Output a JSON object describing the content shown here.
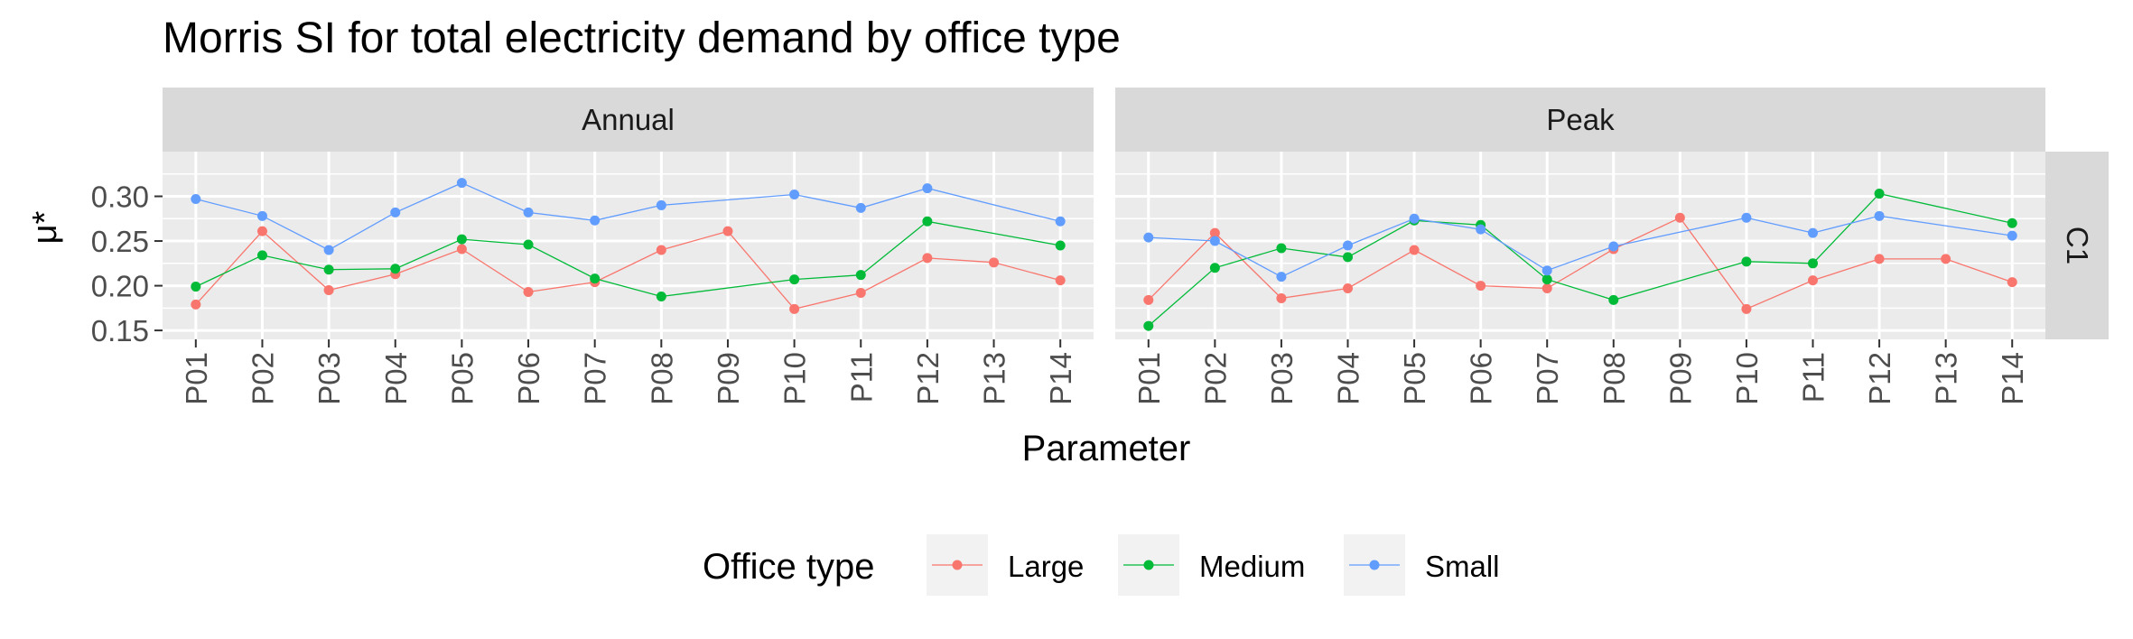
{
  "chart_data": {
    "type": "line",
    "title": "Morris SI for total electricity demand by office type",
    "xlabel": "Parameter",
    "ylabel": "μ*",
    "ylim": [
      0.14,
      0.35
    ],
    "yticks": [
      0.15,
      0.2,
      0.25,
      0.3
    ],
    "ytick_labels": [
      "0.15",
      "0.20",
      "0.25",
      "0.30"
    ],
    "categories": [
      "P01",
      "P02",
      "P03",
      "P04",
      "P05",
      "P06",
      "P07",
      "P08",
      "P09",
      "P10",
      "P11",
      "P12",
      "P13",
      "P14"
    ],
    "grid": true,
    "legend": {
      "title": "Office type",
      "position": "bottom"
    },
    "row_strip": "C1",
    "facets": [
      {
        "label": "Annual",
        "series": [
          {
            "name": "Large",
            "color": "#F8766D",
            "values": [
              0.179,
              0.261,
              0.195,
              0.213,
              0.241,
              0.193,
              0.204,
              0.24,
              0.261,
              0.174,
              0.192,
              0.231,
              0.226,
              0.206
            ]
          },
          {
            "name": "Medium",
            "color": "#00BA38",
            "values": [
              0.199,
              0.234,
              0.218,
              0.219,
              0.252,
              0.246,
              0.208,
              0.188,
              null,
              0.207,
              0.212,
              0.272,
              null,
              0.245
            ]
          },
          {
            "name": "Small",
            "color": "#619CFF",
            "values": [
              0.297,
              0.278,
              0.24,
              0.282,
              0.315,
              0.282,
              0.273,
              0.29,
              null,
              0.302,
              0.287,
              0.309,
              null,
              0.272
            ]
          }
        ]
      },
      {
        "label": "Peak",
        "series": [
          {
            "name": "Large",
            "color": "#F8766D",
            "values": [
              0.184,
              0.259,
              0.186,
              0.197,
              0.24,
              0.2,
              0.197,
              0.241,
              0.276,
              0.174,
              0.206,
              0.23,
              0.23,
              0.204
            ]
          },
          {
            "name": "Medium",
            "color": "#00BA38",
            "values": [
              0.155,
              0.22,
              0.242,
              0.232,
              0.273,
              0.268,
              0.207,
              0.184,
              null,
              0.227,
              0.225,
              0.303,
              null,
              0.27
            ]
          },
          {
            "name": "Small",
            "color": "#619CFF",
            "values": [
              0.254,
              0.25,
              0.21,
              0.245,
              0.275,
              0.263,
              0.217,
              0.244,
              null,
              0.276,
              0.259,
              0.278,
              null,
              0.256
            ]
          }
        ]
      }
    ]
  }
}
